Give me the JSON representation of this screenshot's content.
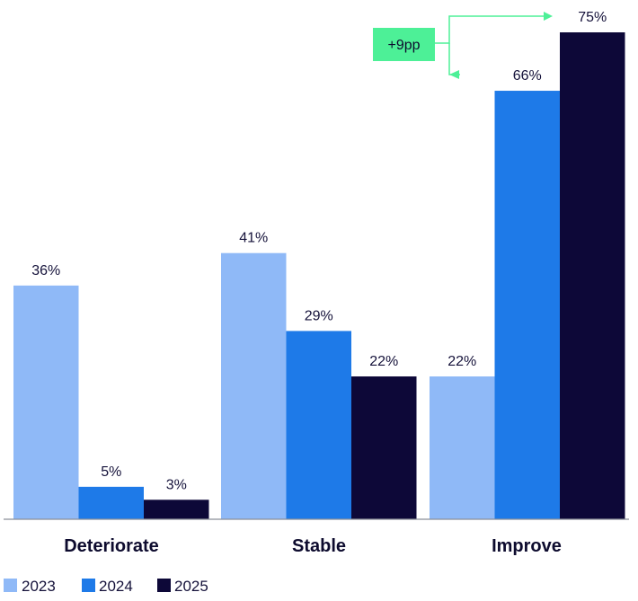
{
  "chart_data": {
    "type": "bar",
    "categories": [
      "Deteriorate",
      "Stable",
      "Improve"
    ],
    "series": [
      {
        "name": "2023",
        "values": [
          36,
          41,
          22
        ],
        "labels": [
          "36%",
          "41%",
          "22%"
        ],
        "color": "#8fb9f7"
      },
      {
        "name": "2024",
        "values": [
          5,
          29,
          66
        ],
        "labels": [
          "5%",
          "29%",
          "66%"
        ],
        "color": "#1e7ae8"
      },
      {
        "name": "2025",
        "values": [
          3,
          22,
          75
        ],
        "labels": [
          "3%",
          "22%",
          "75%"
        ],
        "color": "#0d0838"
      }
    ],
    "ylim": [
      0,
      75
    ],
    "grid": false,
    "legend_position": "bottom-left",
    "annotation": {
      "text": "+9pp",
      "color": "#4df097",
      "from_series": "2024",
      "to_series": "2025",
      "category": "Improve"
    }
  }
}
